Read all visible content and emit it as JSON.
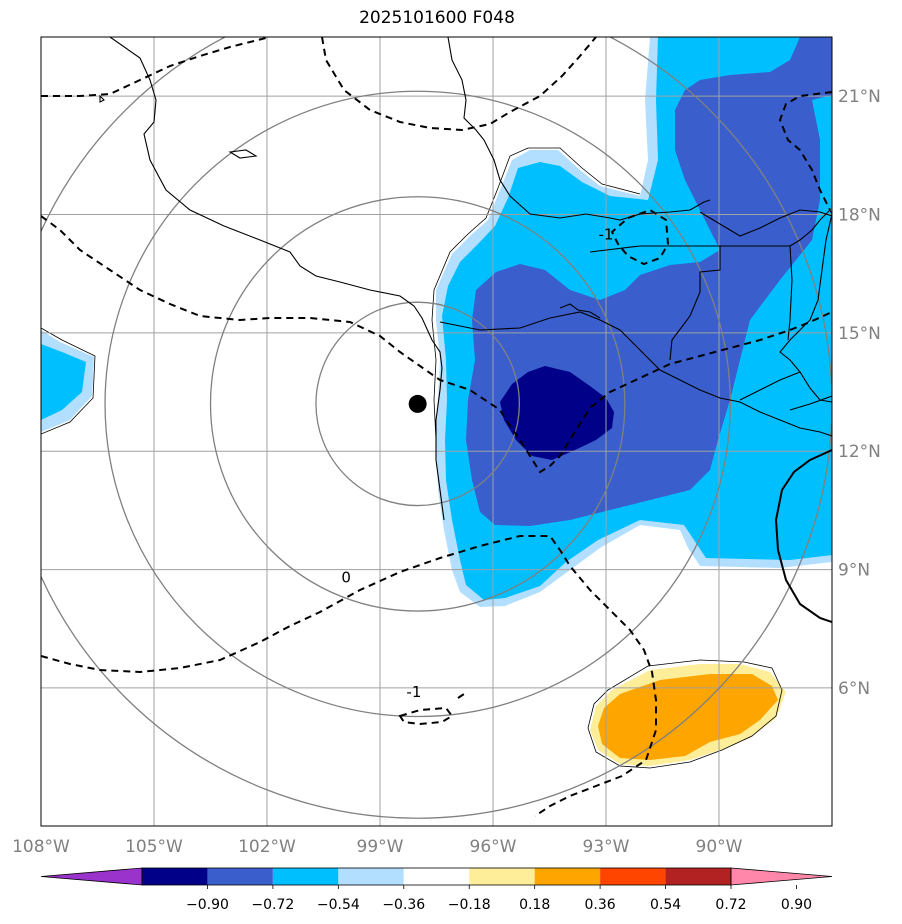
{
  "title": "2025101600 F048",
  "map": {
    "lon_range": [
      -108,
      -87
    ],
    "lat_range": [
      2.5,
      22.5
    ],
    "lon_ticks": [
      {
        "value": -108,
        "label": "108°W"
      },
      {
        "value": -105,
        "label": "105°W"
      },
      {
        "value": -102,
        "label": "102°W"
      },
      {
        "value": -99,
        "label": "99°W"
      },
      {
        "value": -96,
        "label": "96°W"
      },
      {
        "value": -93,
        "label": "93°W"
      },
      {
        "value": -90,
        "label": "90°W"
      }
    ],
    "lat_ticks": [
      {
        "value": 6,
        "label": "6°N"
      },
      {
        "value": 9,
        "label": "9°N"
      },
      {
        "value": 12,
        "label": "12°N"
      },
      {
        "value": 15,
        "label": "15°N"
      },
      {
        "value": 18,
        "label": "18°N"
      },
      {
        "value": 21,
        "label": "21°N"
      }
    ],
    "storm_center": {
      "lon": -98.0,
      "lat": 13.2
    },
    "range_rings_deg": [
      2.7,
      5.5,
      8.3,
      11.0
    ],
    "contour_labels": [
      {
        "text": "-1",
        "lon": -93.0,
        "lat": 17.5
      },
      {
        "text": "0",
        "lon": -99.9,
        "lat": 8.8
      },
      {
        "text": "-1",
        "lon": -98.1,
        "lat": 5.9
      }
    ]
  },
  "colorbar": {
    "colors": [
      "#9933cc",
      "#000088",
      "#3a5fcd",
      "#00bfff",
      "#b2dfff",
      "#ffffff",
      "#ffee99",
      "#ffa500",
      "#ff4500",
      "#b22222",
      "#ff88aa"
    ],
    "labels": [
      "−0.90",
      "−0.72",
      "−0.54",
      "−0.36",
      "−0.18",
      "0.18",
      "0.36",
      "0.54",
      "0.72",
      "0.90"
    ]
  },
  "field_colors": {
    "very_light_blue": "#b2dfff",
    "light_blue": "#00bfff",
    "medium_blue": "#3a5fcd",
    "dark_blue": "#000088",
    "light_orange": "#ffee99",
    "orange": "#ffa500"
  }
}
